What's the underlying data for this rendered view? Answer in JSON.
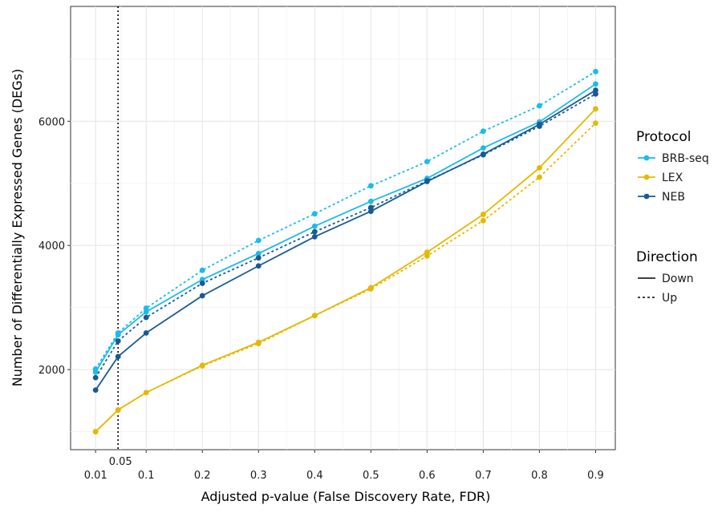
{
  "chart_data": {
    "type": "line",
    "xlabel": "Adjusted p-value (False Discovery Rate, FDR)",
    "ylabel": "Number of Differentially Expressed Genes (DEGs)",
    "x": [
      0.01,
      0.05,
      0.1,
      0.2,
      0.3,
      0.4,
      0.5,
      0.6,
      0.7,
      0.8,
      0.9
    ],
    "x_ticks": [
      0.01,
      0.1,
      0.2,
      0.3,
      0.4,
      0.5,
      0.6,
      0.7,
      0.8,
      0.9
    ],
    "x_tick_labels": [
      "0.01",
      "0.1",
      "0.2",
      "0.3",
      "0.4",
      "0.5",
      "0.6",
      "0.7",
      "0.8",
      "0.9"
    ],
    "y_ticks": [
      2000,
      4000,
      6000
    ],
    "y_tick_labels": [
      "2000",
      "4000",
      "6000"
    ],
    "xlim": [
      -0.0345,
      0.935
    ],
    "ylim": [
      710,
      7850
    ],
    "grid": true,
    "vline": {
      "x": 0.05,
      "label": "0.05"
    },
    "legend": {
      "placement": "right",
      "protocol_title": "Protocol",
      "protocol_entries": [
        {
          "name": "BRB-seq",
          "color": "#1ABCEC"
        },
        {
          "name": "LEX",
          "color": "#E6B800"
        },
        {
          "name": "NEB",
          "color": "#1A5A93"
        }
      ],
      "direction_title": "Direction",
      "direction_entries": [
        {
          "name": "Down",
          "dash": "solid"
        },
        {
          "name": "Up",
          "dash": "dotted"
        }
      ]
    },
    "series": [
      {
        "protocol": "BRB-seq",
        "direction": "Down",
        "color": "#1ABCEC",
        "dash": "solid",
        "values": [
          1960,
          2560,
          2930,
          3450,
          3870,
          4310,
          4710,
          5080,
          5570,
          5990,
          6600
        ]
      },
      {
        "protocol": "BRB-seq",
        "direction": "Up",
        "color": "#1ABCEC",
        "dash": "dotted",
        "values": [
          2010,
          2590,
          2990,
          3600,
          4080,
          4510,
          4960,
          5350,
          5840,
          6250,
          6800
        ]
      },
      {
        "protocol": "LEX",
        "direction": "Down",
        "color": "#E6B800",
        "dash": "solid",
        "values": [
          1000,
          1350,
          1630,
          2070,
          2440,
          2870,
          3320,
          3890,
          4500,
          5250,
          6200
        ]
      },
      {
        "protocol": "LEX",
        "direction": "Up",
        "color": "#E6B800",
        "dash": "dotted",
        "values": [
          1000,
          1350,
          1630,
          2060,
          2420,
          2870,
          3300,
          3830,
          4400,
          5100,
          5970
        ]
      },
      {
        "protocol": "NEB",
        "direction": "Down",
        "color": "#1A5A93",
        "dash": "solid",
        "values": [
          1670,
          2210,
          2590,
          3190,
          3670,
          4140,
          4550,
          5030,
          5470,
          5950,
          6500
        ]
      },
      {
        "protocol": "NEB",
        "direction": "Up",
        "color": "#1A5A93",
        "dash": "dotted",
        "values": [
          1870,
          2460,
          2840,
          3390,
          3800,
          4220,
          4610,
          5040,
          5460,
          5920,
          6440
        ]
      }
    ]
  }
}
